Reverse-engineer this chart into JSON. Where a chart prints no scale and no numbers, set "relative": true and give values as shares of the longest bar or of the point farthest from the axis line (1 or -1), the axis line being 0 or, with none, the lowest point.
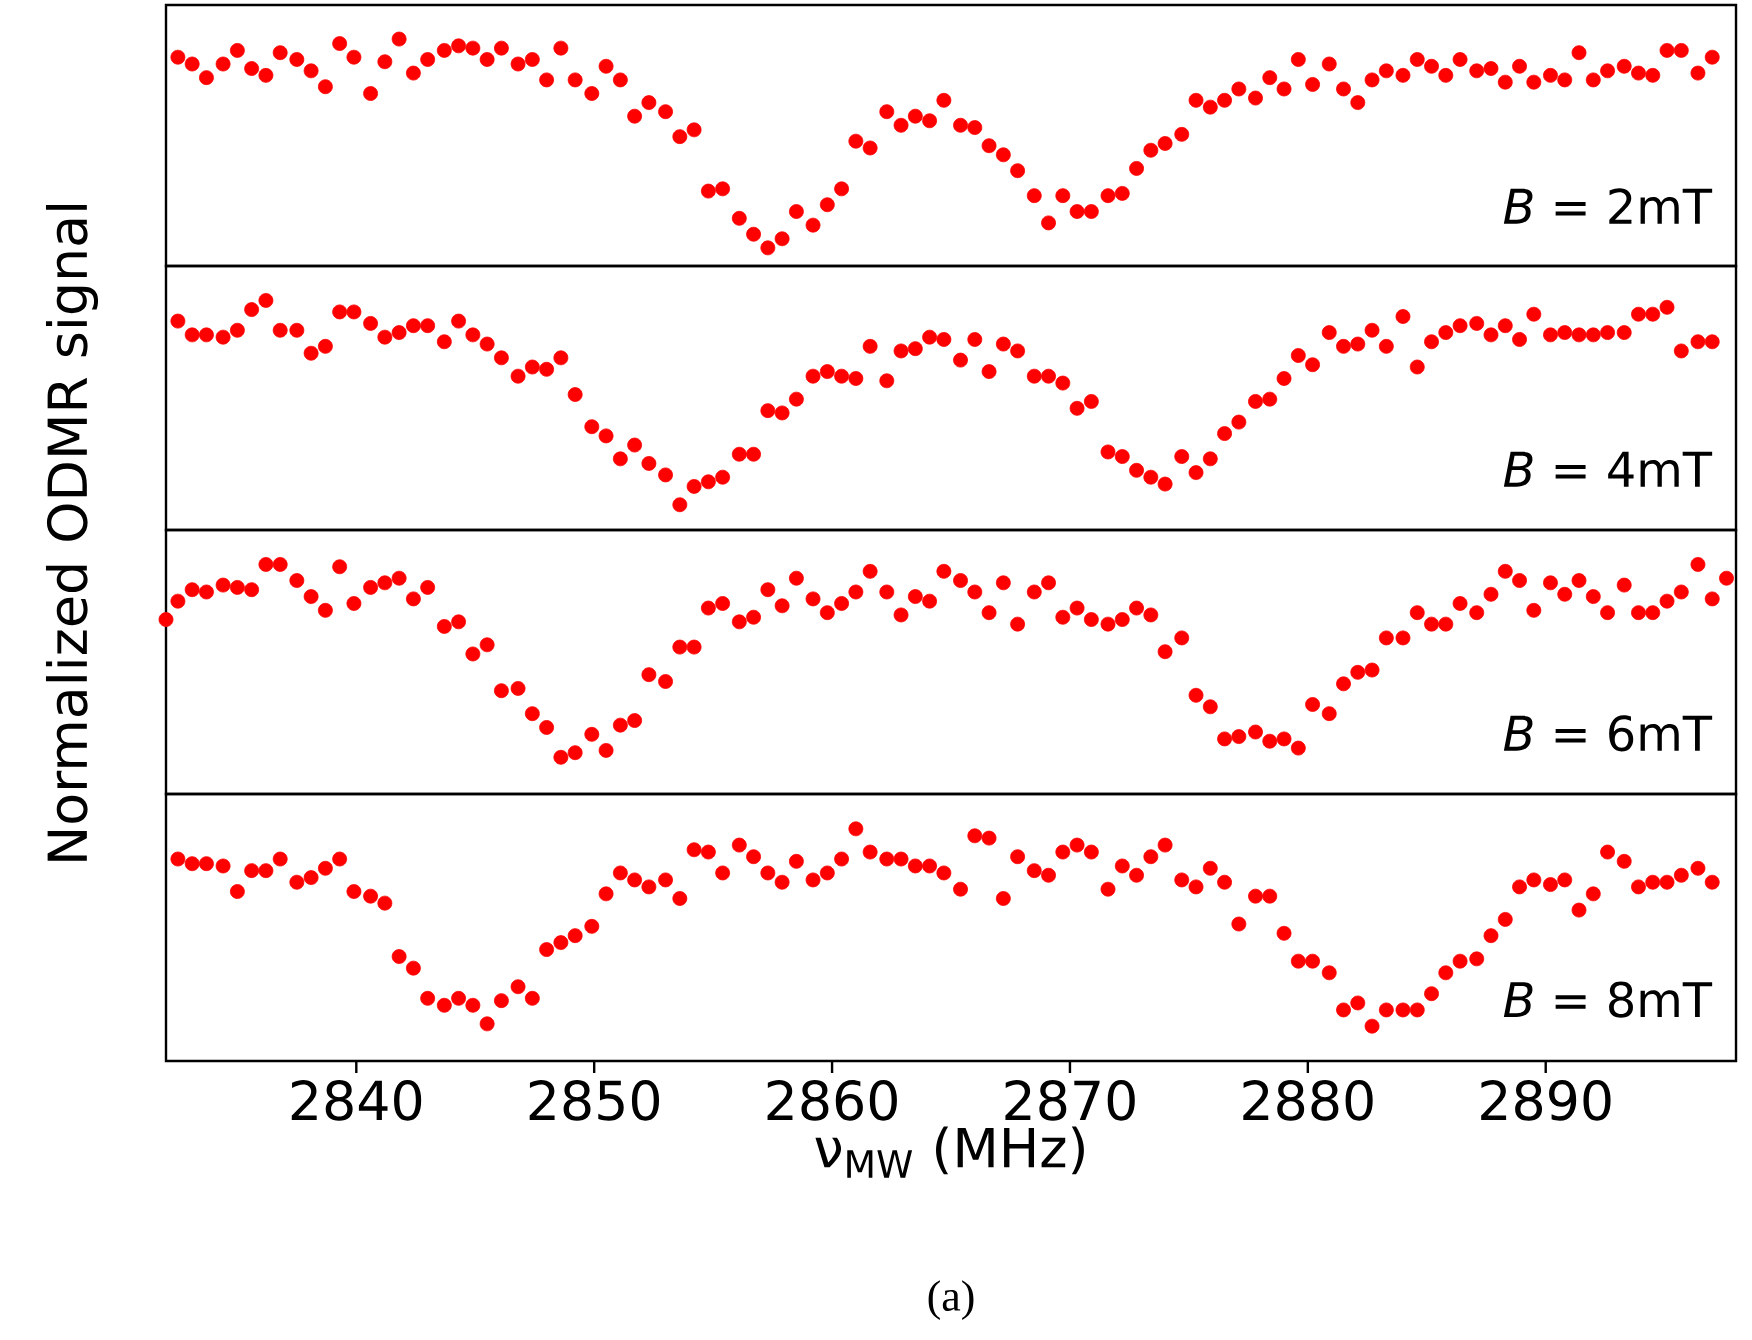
{
  "chart_data": [
    {
      "type": "scatter",
      "relative": true,
      "color": "#ff0000",
      "marker": "circle",
      "tick_labels": false,
      "xlim": [
        2832,
        2898
      ],
      "ylabel": "Normalized ODMR signal",
      "annotations": [
        "*B* = 2mT"
      ],
      "x": [
        2832.5,
        2833.1,
        2833.7,
        2834.4,
        2835.0,
        2835.6,
        2836.2,
        2836.8,
        2837.5,
        2838.1,
        2838.7,
        2839.3,
        2839.9,
        2840.6,
        2841.2,
        2841.8,
        2842.4,
        2843.0,
        2843.7,
        2844.3,
        2844.9,
        2845.5,
        2846.1,
        2846.8,
        2847.4,
        2848.0,
        2848.6,
        2849.2,
        2849.9,
        2850.5,
        2851.1,
        2851.7,
        2852.3,
        2853.0,
        2853.6,
        2854.2,
        2854.8,
        2855.4,
        2856.1,
        2856.7,
        2857.3,
        2857.9,
        2858.5,
        2859.2,
        2859.8,
        2860.4,
        2861.0,
        2861.6,
        2862.3,
        2862.9,
        2863.5,
        2864.1,
        2864.7,
        2865.4,
        2866.0,
        2866.6,
        2867.2,
        2867.8,
        2868.5,
        2869.1,
        2869.7,
        2870.3,
        2870.9,
        2871.6,
        2872.2,
        2872.8,
        2873.4,
        2874.0,
        2874.7,
        2875.3,
        2875.9,
        2876.5,
        2877.1,
        2877.8,
        2878.4,
        2879.0,
        2879.6,
        2880.2,
        2880.9,
        2881.5,
        2882.1,
        2882.7,
        2883.3,
        2884.0,
        2884.6,
        2885.2,
        2885.8,
        2886.4,
        2887.1,
        2887.7,
        2888.3,
        2888.9,
        2889.5,
        2890.2,
        2890.8,
        2891.4,
        2892.0,
        2892.6,
        2893.3,
        2893.9,
        2894.5,
        2895.1,
        2895.7,
        2896.4,
        2897.0
      ],
      "values": [
        0.92,
        0.89,
        0.83,
        0.89,
        0.95,
        0.87,
        0.84,
        0.94,
        0.91,
        0.86,
        0.79,
        0.98,
        0.92,
        0.76,
        0.9,
        1.0,
        0.85,
        0.91,
        0.95,
        0.97,
        0.96,
        0.91,
        0.96,
        0.89,
        0.91,
        0.82,
        0.96,
        0.82,
        0.76,
        0.88,
        0.82,
        0.66,
        0.72,
        0.68,
        0.57,
        0.6,
        0.33,
        0.34,
        0.21,
        0.14,
        0.08,
        0.12,
        0.24,
        0.18,
        0.27,
        0.34,
        0.55,
        0.52,
        0.68,
        0.62,
        0.66,
        0.64,
        0.73,
        0.62,
        0.61,
        0.53,
        0.49,
        0.42,
        0.31,
        0.19,
        0.31,
        0.24,
        0.24,
        0.31,
        0.32,
        0.43,
        0.51,
        0.54,
        0.58,
        0.73,
        0.7,
        0.73,
        0.78,
        0.74,
        0.83,
        0.78,
        0.91,
        0.8,
        0.89,
        0.78,
        0.72,
        0.82,
        0.86,
        0.84,
        0.91,
        0.88,
        0.84,
        0.91,
        0.86,
        0.87,
        0.81,
        0.88,
        0.81,
        0.84,
        0.82,
        0.94,
        0.82,
        0.86,
        0.88,
        0.85,
        0.84,
        0.95,
        0.95,
        0.85,
        0.92
      ]
    },
    {
      "type": "scatter",
      "relative": true,
      "color": "#ff0000",
      "marker": "circle",
      "tick_labels": false,
      "xlim": [
        2832,
        2898
      ],
      "annotations": [
        "*B* = 4mT"
      ],
      "x": [
        2832.5,
        2833.1,
        2833.7,
        2834.4,
        2835.0,
        2835.6,
        2836.2,
        2836.8,
        2837.5,
        2838.1,
        2838.7,
        2839.3,
        2839.9,
        2840.6,
        2841.2,
        2841.8,
        2842.4,
        2843.0,
        2843.7,
        2844.3,
        2844.9,
        2845.5,
        2846.1,
        2846.8,
        2847.4,
        2848.0,
        2848.6,
        2849.2,
        2849.9,
        2850.5,
        2851.1,
        2851.7,
        2852.3,
        2853.0,
        2853.6,
        2854.2,
        2854.8,
        2855.4,
        2856.1,
        2856.7,
        2857.3,
        2857.9,
        2858.5,
        2859.2,
        2859.8,
        2860.4,
        2861.0,
        2861.6,
        2862.3,
        2862.9,
        2863.5,
        2864.1,
        2864.7,
        2865.4,
        2866.0,
        2866.6,
        2867.2,
        2867.8,
        2868.5,
        2869.1,
        2869.7,
        2870.3,
        2870.9,
        2871.6,
        2872.2,
        2872.8,
        2873.4,
        2874.0,
        2874.7,
        2875.3,
        2875.9,
        2876.5,
        2877.1,
        2877.8,
        2878.4,
        2879.0,
        2879.6,
        2880.2,
        2880.9,
        2881.5,
        2882.1,
        2882.7,
        2883.3,
        2884.0,
        2884.6,
        2885.2,
        2885.8,
        2886.4,
        2887.1,
        2887.7,
        2888.3,
        2888.9,
        2889.5,
        2890.2,
        2890.8,
        2891.4,
        2892.0,
        2892.6,
        2893.3,
        2893.9,
        2894.5,
        2895.1,
        2895.7,
        2896.4,
        2897.0
      ],
      "values": [
        0.91,
        0.85,
        0.85,
        0.84,
        0.87,
        0.96,
        1.0,
        0.87,
        0.87,
        0.77,
        0.8,
        0.95,
        0.95,
        0.9,
        0.84,
        0.86,
        0.89,
        0.89,
        0.82,
        0.91,
        0.85,
        0.81,
        0.75,
        0.67,
        0.71,
        0.7,
        0.75,
        0.59,
        0.45,
        0.41,
        0.31,
        0.37,
        0.29,
        0.24,
        0.11,
        0.19,
        0.21,
        0.23,
        0.33,
        0.33,
        0.52,
        0.51,
        0.57,
        0.67,
        0.69,
        0.67,
        0.66,
        0.8,
        0.65,
        0.78,
        0.79,
        0.84,
        0.83,
        0.74,
        0.83,
        0.69,
        0.81,
        0.78,
        0.67,
        0.67,
        0.64,
        0.53,
        0.56,
        0.34,
        0.32,
        0.26,
        0.23,
        0.2,
        0.32,
        0.25,
        0.31,
        0.42,
        0.47,
        0.56,
        0.57,
        0.66,
        0.76,
        0.72,
        0.86,
        0.8,
        0.81,
        0.87,
        0.8,
        0.93,
        0.71,
        0.82,
        0.86,
        0.89,
        0.9,
        0.85,
        0.89,
        0.83,
        0.94,
        0.85,
        0.86,
        0.85,
        0.85,
        0.86,
        0.86,
        0.94,
        0.94,
        0.97,
        0.78,
        0.82,
        0.82
      ]
    },
    {
      "type": "scatter",
      "relative": true,
      "color": "#ff0000",
      "marker": "circle",
      "tick_labels": false,
      "xlim": [
        2832,
        2898
      ],
      "annotations": [
        "*B* = 6mT"
      ],
      "x": [
        2832.0,
        2832.5,
        2833.1,
        2833.7,
        2834.4,
        2835.0,
        2835.6,
        2836.2,
        2836.8,
        2837.5,
        2838.1,
        2838.7,
        2839.3,
        2839.9,
        2840.6,
        2841.2,
        2841.8,
        2842.4,
        2843.0,
        2843.7,
        2844.3,
        2844.9,
        2845.5,
        2846.1,
        2846.8,
        2847.4,
        2848.0,
        2848.6,
        2849.2,
        2849.9,
        2850.5,
        2851.1,
        2851.7,
        2852.3,
        2853.0,
        2853.6,
        2854.2,
        2854.8,
        2855.4,
        2856.1,
        2856.7,
        2857.3,
        2857.9,
        2858.5,
        2859.2,
        2859.8,
        2860.4,
        2861.0,
        2861.6,
        2862.3,
        2862.9,
        2863.5,
        2864.1,
        2864.7,
        2865.4,
        2866.0,
        2866.6,
        2867.2,
        2867.8,
        2868.5,
        2869.1,
        2869.7,
        2870.3,
        2870.9,
        2871.6,
        2872.2,
        2872.8,
        2873.4,
        2874.0,
        2874.7,
        2875.3,
        2875.9,
        2876.5,
        2877.1,
        2877.8,
        2878.4,
        2879.0,
        2879.6,
        2880.2,
        2880.9,
        2881.5,
        2882.1,
        2882.7,
        2883.3,
        2884.0,
        2884.6,
        2885.2,
        2885.8,
        2886.4,
        2887.1,
        2887.7,
        2888.3,
        2888.9,
        2889.5,
        2890.2,
        2890.8,
        2891.4,
        2892.0,
        2892.6,
        2893.3,
        2893.9,
        2894.5,
        2895.1,
        2895.7,
        2896.4,
        2897.0,
        2897.6
      ],
      "values": [
        0.76,
        0.84,
        0.89,
        0.88,
        0.91,
        0.9,
        0.89,
        1.0,
        1.0,
        0.93,
        0.86,
        0.8,
        0.99,
        0.83,
        0.9,
        0.92,
        0.94,
        0.85,
        0.9,
        0.73,
        0.75,
        0.61,
        0.65,
        0.45,
        0.46,
        0.35,
        0.29,
        0.16,
        0.18,
        0.26,
        0.19,
        0.3,
        0.32,
        0.52,
        0.49,
        0.64,
        0.64,
        0.81,
        0.83,
        0.75,
        0.77,
        0.89,
        0.82,
        0.94,
        0.85,
        0.79,
        0.83,
        0.88,
        0.97,
        0.88,
        0.78,
        0.86,
        0.84,
        0.97,
        0.93,
        0.88,
        0.79,
        0.92,
        0.74,
        0.88,
        0.92,
        0.77,
        0.81,
        0.76,
        0.74,
        0.76,
        0.81,
        0.78,
        0.62,
        0.68,
        0.43,
        0.38,
        0.24,
        0.25,
        0.27,
        0.23,
        0.24,
        0.2,
        0.39,
        0.35,
        0.48,
        0.53,
        0.54,
        0.68,
        0.68,
        0.79,
        0.74,
        0.74,
        0.83,
        0.79,
        0.87,
        0.97,
        0.93,
        0.8,
        0.92,
        0.87,
        0.93,
        0.86,
        0.79,
        0.91,
        0.79,
        0.79,
        0.84,
        0.88,
        1.0,
        0.85,
        0.94
      ]
    },
    {
      "type": "scatter",
      "relative": true,
      "color": "#ff0000",
      "marker": "circle",
      "tick_labels": "x",
      "xlim": [
        2832,
        2898
      ],
      "xticks": [
        2840,
        2850,
        2860,
        2870,
        2880,
        2890
      ],
      "xlabel": "ν$_{MW}$ (MHz)",
      "annotations": [
        "*B* = 8mT",
        "(a)"
      ],
      "x": [
        2832.5,
        2833.1,
        2833.7,
        2834.4,
        2835.0,
        2835.6,
        2836.2,
        2836.8,
        2837.5,
        2838.1,
        2838.7,
        2839.3,
        2839.9,
        2840.6,
        2841.2,
        2841.8,
        2842.4,
        2843.0,
        2843.7,
        2844.3,
        2844.9,
        2845.5,
        2846.1,
        2846.8,
        2847.4,
        2848.0,
        2848.6,
        2849.2,
        2849.9,
        2850.5,
        2851.1,
        2851.7,
        2852.3,
        2853.0,
        2853.6,
        2854.2,
        2854.8,
        2855.4,
        2856.1,
        2856.7,
        2857.3,
        2857.9,
        2858.5,
        2859.2,
        2859.8,
        2860.4,
        2861.0,
        2861.6,
        2862.3,
        2862.9,
        2863.5,
        2864.1,
        2864.7,
        2865.4,
        2866.0,
        2866.6,
        2867.2,
        2867.8,
        2868.5,
        2869.1,
        2869.7,
        2870.3,
        2870.9,
        2871.6,
        2872.2,
        2872.8,
        2873.4,
        2874.0,
        2874.7,
        2875.3,
        2875.9,
        2876.5,
        2877.1,
        2877.8,
        2878.4,
        2879.0,
        2879.6,
        2880.2,
        2880.9,
        2881.5,
        2882.1,
        2882.7,
        2883.3,
        2884.0,
        2884.6,
        2885.2,
        2885.8,
        2886.4,
        2887.1,
        2887.7,
        2888.3,
        2888.9,
        2889.5,
        2890.2,
        2890.8,
        2891.4,
        2892.0,
        2892.6,
        2893.3,
        2893.9,
        2894.5,
        2895.1,
        2895.7,
        2896.4,
        2897.0
      ],
      "values": [
        0.87,
        0.85,
        0.85,
        0.84,
        0.73,
        0.82,
        0.82,
        0.87,
        0.77,
        0.79,
        0.83,
        0.87,
        0.73,
        0.71,
        0.68,
        0.45,
        0.4,
        0.27,
        0.24,
        0.27,
        0.24,
        0.16,
        0.26,
        0.32,
        0.27,
        0.48,
        0.51,
        0.54,
        0.58,
        0.72,
        0.81,
        0.78,
        0.75,
        0.78,
        0.7,
        0.91,
        0.9,
        0.81,
        0.93,
        0.88,
        0.81,
        0.77,
        0.86,
        0.78,
        0.81,
        0.87,
        1.0,
        0.9,
        0.87,
        0.87,
        0.84,
        0.84,
        0.81,
        0.74,
        0.97,
        0.96,
        0.7,
        0.88,
        0.82,
        0.8,
        0.9,
        0.93,
        0.9,
        0.74,
        0.84,
        0.8,
        0.88,
        0.93,
        0.78,
        0.75,
        0.83,
        0.77,
        0.59,
        0.71,
        0.71,
        0.55,
        0.43,
        0.43,
        0.38,
        0.22,
        0.25,
        0.15,
        0.22,
        0.22,
        0.22,
        0.29,
        0.38,
        0.43,
        0.44,
        0.54,
        0.61,
        0.75,
        0.78,
        0.76,
        0.78,
        0.65,
        0.72,
        0.9,
        0.86,
        0.75,
        0.77,
        0.77,
        0.8,
        0.83,
        0.77
      ]
    }
  ]
}
